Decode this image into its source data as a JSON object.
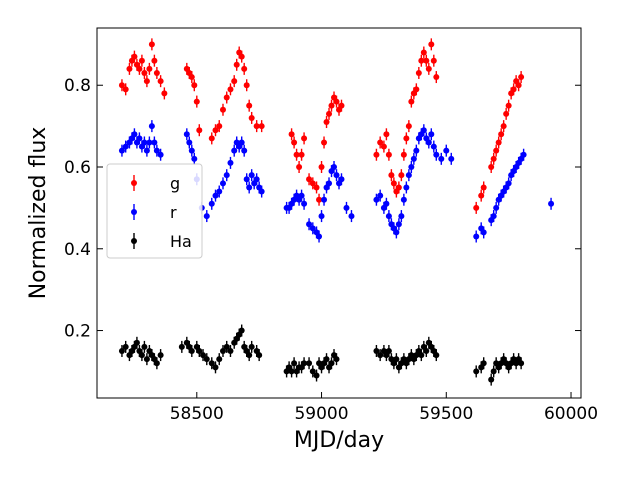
{
  "chart_data": {
    "type": "scatter",
    "title": "",
    "xlabel": "MJD/day",
    "ylabel": "Normalized flux",
    "xlim": [
      58100,
      60040
    ],
    "ylim": [
      0.035,
      0.94
    ],
    "xticks": [
      58500,
      59000,
      59500,
      60000
    ],
    "yticks": [
      0.2,
      0.4,
      0.6,
      0.8
    ],
    "grid": false,
    "legend_position": "center-left",
    "series": [
      {
        "name": "g",
        "color": "#ff0000",
        "values": [
          [
            58200,
            0.8
          ],
          [
            58215,
            0.79
          ],
          [
            58230,
            0.84
          ],
          [
            58240,
            0.86
          ],
          [
            58250,
            0.87
          ],
          [
            58260,
            0.85
          ],
          [
            58270,
            0.84
          ],
          [
            58280,
            0.86
          ],
          [
            58290,
            0.83
          ],
          [
            58300,
            0.81
          ],
          [
            58310,
            0.84
          ],
          [
            58320,
            0.9
          ],
          [
            58330,
            0.86
          ],
          [
            58340,
            0.83
          ],
          [
            58355,
            0.81
          ],
          [
            58370,
            0.78
          ],
          [
            58460,
            0.84
          ],
          [
            58470,
            0.83
          ],
          [
            58480,
            0.82
          ],
          [
            58490,
            0.8
          ],
          [
            58500,
            0.76
          ],
          [
            58510,
            0.69
          ],
          [
            58560,
            0.67
          ],
          [
            58575,
            0.69
          ],
          [
            58590,
            0.7
          ],
          [
            58605,
            0.74
          ],
          [
            58620,
            0.77
          ],
          [
            58635,
            0.79
          ],
          [
            58650,
            0.81
          ],
          [
            58660,
            0.85
          ],
          [
            58670,
            0.88
          ],
          [
            58680,
            0.87
          ],
          [
            58690,
            0.84
          ],
          [
            58700,
            0.8
          ],
          [
            58710,
            0.75
          ],
          [
            58720,
            0.72
          ],
          [
            58740,
            0.7
          ],
          [
            58760,
            0.7
          ],
          [
            58880,
            0.68
          ],
          [
            58890,
            0.66
          ],
          [
            58900,
            0.63
          ],
          [
            58910,
            0.6
          ],
          [
            58920,
            0.63
          ],
          [
            58930,
            0.67
          ],
          [
            58950,
            0.57
          ],
          [
            58965,
            0.56
          ],
          [
            58980,
            0.55
          ],
          [
            58990,
            0.52
          ],
          [
            59000,
            0.6
          ],
          [
            59010,
            0.66
          ],
          [
            59020,
            0.71
          ],
          [
            59030,
            0.73
          ],
          [
            59040,
            0.75
          ],
          [
            59050,
            0.77
          ],
          [
            59060,
            0.76
          ],
          [
            59070,
            0.74
          ],
          [
            59080,
            0.75
          ],
          [
            59220,
            0.63
          ],
          [
            59235,
            0.66
          ],
          [
            59250,
            0.65
          ],
          [
            59260,
            0.68
          ],
          [
            59270,
            0.63
          ],
          [
            59280,
            0.58
          ],
          [
            59290,
            0.56
          ],
          [
            59300,
            0.54
          ],
          [
            59310,
            0.55
          ],
          [
            59320,
            0.58
          ],
          [
            59330,
            0.63
          ],
          [
            59340,
            0.67
          ],
          [
            59350,
            0.7
          ],
          [
            59360,
            0.76
          ],
          [
            59370,
            0.78
          ],
          [
            59380,
            0.79
          ],
          [
            59390,
            0.83
          ],
          [
            59400,
            0.86
          ],
          [
            59410,
            0.88
          ],
          [
            59420,
            0.86
          ],
          [
            59430,
            0.84
          ],
          [
            59440,
            0.9
          ],
          [
            59450,
            0.86
          ],
          [
            59460,
            0.82
          ],
          [
            59620,
            0.5
          ],
          [
            59640,
            0.53
          ],
          [
            59650,
            0.55
          ],
          [
            59680,
            0.6
          ],
          [
            59690,
            0.62
          ],
          [
            59700,
            0.64
          ],
          [
            59710,
            0.66
          ],
          [
            59720,
            0.68
          ],
          [
            59730,
            0.7
          ],
          [
            59740,
            0.73
          ],
          [
            59750,
            0.75
          ],
          [
            59760,
            0.78
          ],
          [
            59770,
            0.79
          ],
          [
            59780,
            0.81
          ],
          [
            59790,
            0.8
          ],
          [
            59800,
            0.82
          ]
        ]
      },
      {
        "name": "r",
        "color": "#0000ff",
        "values": [
          [
            58200,
            0.64
          ],
          [
            58215,
            0.65
          ],
          [
            58230,
            0.66
          ],
          [
            58240,
            0.67
          ],
          [
            58250,
            0.68
          ],
          [
            58260,
            0.66
          ],
          [
            58270,
            0.67
          ],
          [
            58280,
            0.65
          ],
          [
            58290,
            0.66
          ],
          [
            58300,
            0.64
          ],
          [
            58310,
            0.66
          ],
          [
            58320,
            0.7
          ],
          [
            58330,
            0.66
          ],
          [
            58340,
            0.64
          ],
          [
            58355,
            0.63
          ],
          [
            58460,
            0.68
          ],
          [
            58470,
            0.66
          ],
          [
            58480,
            0.64
          ],
          [
            58490,
            0.62
          ],
          [
            58500,
            0.57
          ],
          [
            58520,
            0.5
          ],
          [
            58540,
            0.48
          ],
          [
            58560,
            0.51
          ],
          [
            58575,
            0.53
          ],
          [
            58590,
            0.54
          ],
          [
            58605,
            0.56
          ],
          [
            58620,
            0.58
          ],
          [
            58635,
            0.61
          ],
          [
            58650,
            0.64
          ],
          [
            58660,
            0.66
          ],
          [
            58670,
            0.65
          ],
          [
            58680,
            0.66
          ],
          [
            58690,
            0.64
          ],
          [
            58700,
            0.57
          ],
          [
            58710,
            0.55
          ],
          [
            58720,
            0.58
          ],
          [
            58730,
            0.56
          ],
          [
            58740,
            0.57
          ],
          [
            58750,
            0.55
          ],
          [
            58760,
            0.54
          ],
          [
            58860,
            0.5
          ],
          [
            58870,
            0.5
          ],
          [
            58880,
            0.51
          ],
          [
            58890,
            0.52
          ],
          [
            58900,
            0.53
          ],
          [
            58910,
            0.52
          ],
          [
            58920,
            0.53
          ],
          [
            58930,
            0.51
          ],
          [
            58950,
            0.46
          ],
          [
            58965,
            0.45
          ],
          [
            58980,
            0.44
          ],
          [
            58990,
            0.43
          ],
          [
            59000,
            0.48
          ],
          [
            59010,
            0.52
          ],
          [
            59020,
            0.55
          ],
          [
            59030,
            0.56
          ],
          [
            59040,
            0.59
          ],
          [
            59050,
            0.6
          ],
          [
            59060,
            0.58
          ],
          [
            59070,
            0.56
          ],
          [
            59080,
            0.57
          ],
          [
            59100,
            0.5
          ],
          [
            59120,
            0.48
          ],
          [
            59220,
            0.52
          ],
          [
            59235,
            0.53
          ],
          [
            59250,
            0.5
          ],
          [
            59260,
            0.51
          ],
          [
            59270,
            0.48
          ],
          [
            59280,
            0.46
          ],
          [
            59290,
            0.45
          ],
          [
            59300,
            0.44
          ],
          [
            59310,
            0.46
          ],
          [
            59320,
            0.48
          ],
          [
            59330,
            0.52
          ],
          [
            59340,
            0.55
          ],
          [
            59350,
            0.58
          ],
          [
            59360,
            0.6
          ],
          [
            59370,
            0.62
          ],
          [
            59380,
            0.64
          ],
          [
            59390,
            0.67
          ],
          [
            59400,
            0.68
          ],
          [
            59410,
            0.69
          ],
          [
            59420,
            0.67
          ],
          [
            59430,
            0.66
          ],
          [
            59440,
            0.68
          ],
          [
            59450,
            0.65
          ],
          [
            59460,
            0.63
          ],
          [
            59480,
            0.62
          ],
          [
            59500,
            0.64
          ],
          [
            59520,
            0.62
          ],
          [
            59620,
            0.43
          ],
          [
            59640,
            0.45
          ],
          [
            59650,
            0.44
          ],
          [
            59680,
            0.47
          ],
          [
            59690,
            0.48
          ],
          [
            59700,
            0.5
          ],
          [
            59710,
            0.52
          ],
          [
            59720,
            0.53
          ],
          [
            59730,
            0.54
          ],
          [
            59740,
            0.55
          ],
          [
            59750,
            0.56
          ],
          [
            59760,
            0.58
          ],
          [
            59770,
            0.59
          ],
          [
            59780,
            0.6
          ],
          [
            59790,
            0.61
          ],
          [
            59800,
            0.62
          ],
          [
            59810,
            0.63
          ],
          [
            59920,
            0.51
          ]
        ]
      },
      {
        "name": "Ha",
        "color": "#000000",
        "values": [
          [
            58200,
            0.15
          ],
          [
            58215,
            0.16
          ],
          [
            58230,
            0.14
          ],
          [
            58240,
            0.15
          ],
          [
            58250,
            0.16
          ],
          [
            58260,
            0.17
          ],
          [
            58270,
            0.15
          ],
          [
            58280,
            0.14
          ],
          [
            58290,
            0.16
          ],
          [
            58300,
            0.13
          ],
          [
            58310,
            0.15
          ],
          [
            58320,
            0.14
          ],
          [
            58330,
            0.13
          ],
          [
            58340,
            0.12
          ],
          [
            58355,
            0.14
          ],
          [
            58440,
            0.16
          ],
          [
            58460,
            0.17
          ],
          [
            58470,
            0.16
          ],
          [
            58480,
            0.15
          ],
          [
            58500,
            0.16
          ],
          [
            58510,
            0.15
          ],
          [
            58525,
            0.14
          ],
          [
            58540,
            0.13
          ],
          [
            58560,
            0.12
          ],
          [
            58575,
            0.11
          ],
          [
            58590,
            0.13
          ],
          [
            58605,
            0.15
          ],
          [
            58620,
            0.16
          ],
          [
            58635,
            0.15
          ],
          [
            58650,
            0.17
          ],
          [
            58660,
            0.18
          ],
          [
            58670,
            0.19
          ],
          [
            58680,
            0.2
          ],
          [
            58690,
            0.16
          ],
          [
            58700,
            0.15
          ],
          [
            58710,
            0.14
          ],
          [
            58720,
            0.16
          ],
          [
            58740,
            0.15
          ],
          [
            58750,
            0.14
          ],
          [
            58860,
            0.1
          ],
          [
            58870,
            0.11
          ],
          [
            58880,
            0.1
          ],
          [
            58890,
            0.12
          ],
          [
            58900,
            0.1
          ],
          [
            58910,
            0.11
          ],
          [
            58920,
            0.11
          ],
          [
            58930,
            0.12
          ],
          [
            58950,
            0.12
          ],
          [
            58965,
            0.1
          ],
          [
            58980,
            0.09
          ],
          [
            58990,
            0.12
          ],
          [
            59000,
            0.11
          ],
          [
            59010,
            0.12
          ],
          [
            59020,
            0.13
          ],
          [
            59030,
            0.11
          ],
          [
            59040,
            0.12
          ],
          [
            59050,
            0.14
          ],
          [
            59060,
            0.13
          ],
          [
            59220,
            0.15
          ],
          [
            59235,
            0.14
          ],
          [
            59250,
            0.15
          ],
          [
            59260,
            0.14
          ],
          [
            59270,
            0.15
          ],
          [
            59280,
            0.13
          ],
          [
            59290,
            0.12
          ],
          [
            59300,
            0.13
          ],
          [
            59310,
            0.11
          ],
          [
            59320,
            0.12
          ],
          [
            59330,
            0.13
          ],
          [
            59340,
            0.12
          ],
          [
            59350,
            0.13
          ],
          [
            59360,
            0.14
          ],
          [
            59370,
            0.13
          ],
          [
            59380,
            0.14
          ],
          [
            59390,
            0.15
          ],
          [
            59400,
            0.14
          ],
          [
            59410,
            0.16
          ],
          [
            59420,
            0.15
          ],
          [
            59430,
            0.17
          ],
          [
            59440,
            0.16
          ],
          [
            59450,
            0.15
          ],
          [
            59460,
            0.14
          ],
          [
            59620,
            0.1
          ],
          [
            59640,
            0.11
          ],
          [
            59650,
            0.12
          ],
          [
            59680,
            0.08
          ],
          [
            59690,
            0.1
          ],
          [
            59700,
            0.12
          ],
          [
            59710,
            0.11
          ],
          [
            59720,
            0.12
          ],
          [
            59730,
            0.13
          ],
          [
            59740,
            0.12
          ],
          [
            59750,
            0.11
          ],
          [
            59760,
            0.12
          ],
          [
            59770,
            0.13
          ],
          [
            59780,
            0.12
          ],
          [
            59790,
            0.13
          ],
          [
            59800,
            0.12
          ]
        ]
      }
    ]
  }
}
